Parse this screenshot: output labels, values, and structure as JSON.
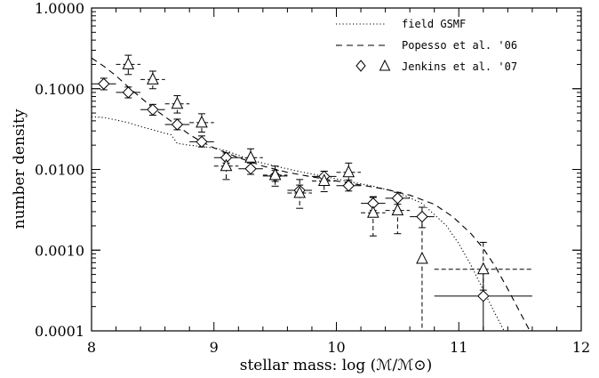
{
  "chart_data": {
    "type": "scatter",
    "xlabel": "stellar mass: log (ℳ/ℳ⊙)",
    "ylabel": "number density",
    "xlim": [
      8,
      12
    ],
    "ylim": [
      0.0001,
      1.0
    ],
    "y_scale": "log",
    "x_ticks": [
      "8",
      "9",
      "10",
      "11",
      "12"
    ],
    "y_ticks": [
      {
        "value": 1.0,
        "label": "1.0000"
      },
      {
        "value": 0.1,
        "label": "0.1000"
      },
      {
        "value": 0.01,
        "label": "0.0100"
      },
      {
        "value": 0.001,
        "label": "0.0010"
      },
      {
        "value": 0.0001,
        "label": "0.0001"
      }
    ],
    "grid": false,
    "legend_position": "top-right",
    "legend": [
      {
        "label": "field GSMF",
        "style": "dotted"
      },
      {
        "label": "Popesso et al. '06",
        "style": "dashed"
      },
      {
        "label": "Jenkins et al. '07",
        "style": "markers"
      }
    ],
    "series": [
      {
        "name": "field GSMF",
        "kind": "line",
        "style": "dotted",
        "points": [
          [
            8.0,
            0.045
          ],
          [
            8.1,
            0.044
          ],
          [
            8.2,
            0.041
          ],
          [
            8.3,
            0.038
          ],
          [
            8.4,
            0.034
          ],
          [
            8.5,
            0.031
          ],
          [
            8.6,
            0.028
          ],
          [
            8.65,
            0.027
          ],
          [
            8.7,
            0.021
          ],
          [
            8.8,
            0.02
          ],
          [
            9.0,
            0.0185
          ],
          [
            9.1,
            0.017
          ],
          [
            9.2,
            0.015
          ],
          [
            9.3,
            0.013
          ],
          [
            9.5,
            0.011
          ],
          [
            9.7,
            0.0094
          ],
          [
            9.9,
            0.0082
          ],
          [
            10.1,
            0.0071
          ],
          [
            10.3,
            0.0062
          ],
          [
            10.5,
            0.0052
          ],
          [
            10.7,
            0.0038
          ],
          [
            10.9,
            0.002
          ],
          [
            11.0,
            0.0012
          ],
          [
            11.1,
            0.00065
          ],
          [
            11.2,
            0.00032
          ],
          [
            11.3,
            0.00016
          ],
          [
            11.37,
            0.0001
          ]
        ]
      },
      {
        "name": "Popesso et al. '06",
        "kind": "line",
        "style": "dashed",
        "points": [
          [
            8.0,
            0.24
          ],
          [
            8.1,
            0.19
          ],
          [
            8.2,
            0.145
          ],
          [
            8.3,
            0.105
          ],
          [
            8.4,
            0.078
          ],
          [
            8.5,
            0.058
          ],
          [
            8.6,
            0.045
          ],
          [
            8.7,
            0.035
          ],
          [
            8.8,
            0.027
          ],
          [
            8.9,
            0.022
          ],
          [
            9.0,
            0.0185
          ],
          [
            9.2,
            0.014
          ],
          [
            9.4,
            0.011
          ],
          [
            9.6,
            0.0092
          ],
          [
            9.8,
            0.0081
          ],
          [
            10.0,
            0.0072
          ],
          [
            10.2,
            0.0064
          ],
          [
            10.4,
            0.0057
          ],
          [
            10.6,
            0.0048
          ],
          [
            10.8,
            0.0037
          ],
          [
            10.95,
            0.0026
          ],
          [
            11.1,
            0.0016
          ],
          [
            11.2,
            0.00105
          ],
          [
            11.3,
            0.00062
          ],
          [
            11.4,
            0.00033
          ],
          [
            11.5,
            0.00017
          ],
          [
            11.58,
            0.0001
          ]
        ]
      },
      {
        "name": "Jenkins et al. '07",
        "kind": "points",
        "marker": "diamond",
        "errorbar_style": "solid",
        "points": [
          {
            "x": 8.1,
            "y": 0.115,
            "xerr": 0.1,
            "ylo": 0.097,
            "yhi": 0.135
          },
          {
            "x": 8.3,
            "y": 0.09,
            "xerr": 0.1,
            "ylo": 0.077,
            "yhi": 0.105
          },
          {
            "x": 8.5,
            "y": 0.055,
            "xerr": 0.1,
            "ylo": 0.047,
            "yhi": 0.064
          },
          {
            "x": 8.7,
            "y": 0.036,
            "xerr": 0.1,
            "ylo": 0.031,
            "yhi": 0.042
          },
          {
            "x": 8.9,
            "y": 0.022,
            "xerr": 0.1,
            "ylo": 0.019,
            "yhi": 0.026
          },
          {
            "x": 9.1,
            "y": 0.014,
            "xerr": 0.1,
            "ylo": 0.012,
            "yhi": 0.016
          },
          {
            "x": 9.3,
            "y": 0.0102,
            "xerr": 0.1,
            "ylo": 0.0087,
            "yhi": 0.012
          },
          {
            "x": 9.5,
            "y": 0.0083,
            "xerr": 0.1,
            "ylo": 0.0071,
            "yhi": 0.0097
          },
          {
            "x": 9.7,
            "y": 0.0055,
            "xerr": 0.1,
            "ylo": 0.0047,
            "yhi": 0.0064
          },
          {
            "x": 9.9,
            "y": 0.0082,
            "xerr": 0.1,
            "ylo": 0.0071,
            "yhi": 0.0095
          },
          {
            "x": 10.1,
            "y": 0.0063,
            "xerr": 0.1,
            "ylo": 0.0054,
            "yhi": 0.0074
          },
          {
            "x": 10.3,
            "y": 0.0038,
            "xerr": 0.1,
            "ylo": 0.0031,
            "yhi": 0.0046
          },
          {
            "x": 10.5,
            "y": 0.0044,
            "xerr": 0.1,
            "ylo": 0.0037,
            "yhi": 0.0052
          },
          {
            "x": 10.7,
            "y": 0.0026,
            "xerr": 0.1,
            "ylo": 0.0019,
            "yhi": 0.0034
          },
          {
            "x": 11.2,
            "y": 0.00027,
            "xerr": 0.4,
            "ylo": 0.0001,
            "yhi": 0.00055
          }
        ]
      },
      {
        "name": "Jenkins et al. '07",
        "kind": "points",
        "marker": "triangle",
        "errorbar_style": "dashed",
        "points": [
          {
            "x": 8.3,
            "y": 0.2,
            "xerr": 0.1,
            "ylo": 0.15,
            "yhi": 0.26
          },
          {
            "x": 8.5,
            "y": 0.13,
            "xerr": 0.1,
            "ylo": 0.1,
            "yhi": 0.165
          },
          {
            "x": 8.7,
            "y": 0.065,
            "xerr": 0.1,
            "ylo": 0.05,
            "yhi": 0.082
          },
          {
            "x": 8.9,
            "y": 0.038,
            "xerr": 0.1,
            "ylo": 0.029,
            "yhi": 0.049
          },
          {
            "x": 9.1,
            "y": 0.011,
            "xerr": 0.1,
            "ylo": 0.0075,
            "yhi": 0.016
          },
          {
            "x": 9.3,
            "y": 0.014,
            "xerr": 0.1,
            "ylo": 0.0105,
            "yhi": 0.018
          },
          {
            "x": 9.5,
            "y": 0.0085,
            "xerr": 0.1,
            "ylo": 0.0062,
            "yhi": 0.011
          },
          {
            "x": 9.7,
            "y": 0.0051,
            "xerr": 0.1,
            "ylo": 0.0033,
            "yhi": 0.0075
          },
          {
            "x": 9.9,
            "y": 0.0072,
            "xerr": 0.1,
            "ylo": 0.0053,
            "yhi": 0.0095
          },
          {
            "x": 10.1,
            "y": 0.0092,
            "xerr": 0.1,
            "ylo": 0.007,
            "yhi": 0.012
          },
          {
            "x": 10.3,
            "y": 0.0029,
            "xerr": 0.1,
            "ylo": 0.0015,
            "yhi": 0.0045
          },
          {
            "x": 10.5,
            "y": 0.0031,
            "xerr": 0.1,
            "ylo": 0.0016,
            "yhi": 0.0047
          },
          {
            "x": 10.7,
            "y": 0.00078,
            "xerr": 0,
            "ylo": 0.0001,
            "yhi": 0.0026
          },
          {
            "x": 11.2,
            "y": 0.00058,
            "xerr": 0.4,
            "ylo": 0.00032,
            "yhi": 0.00125
          }
        ]
      }
    ]
  }
}
